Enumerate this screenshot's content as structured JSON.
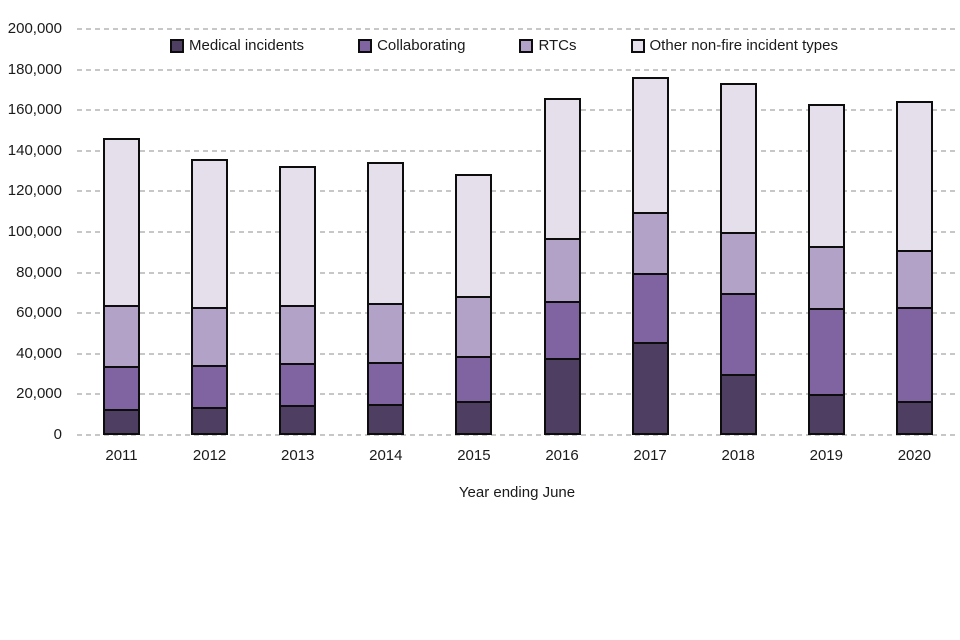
{
  "page": {
    "background": "#ffffff",
    "text_color": "#1a1a1a",
    "gridline_color": "#c7c7c7",
    "bar_border_color": "#0d0d0d"
  },
  "chart_data": {
    "type": "bar",
    "stacked": true,
    "title": "",
    "xlabel": "Year ending June",
    "ylabel": "",
    "ylim": [
      0,
      200000
    ],
    "y_tick_interval": 20000,
    "y_tick_labels": [
      "0",
      "20,000",
      "40,000",
      "60,000",
      "80,000",
      "100,000",
      "120,000",
      "140,000",
      "160,000",
      "180,000",
      "200,000"
    ],
    "grid": "horizontal-dashed",
    "legend_position": "top",
    "categories": [
      "2011",
      "2012",
      "2013",
      "2014",
      "2015",
      "2016",
      "2017",
      "2018",
      "2019",
      "2020"
    ],
    "series": [
      {
        "name": "Medical incidents",
        "color": "#4d3e62",
        "values": [
          12000,
          13000,
          14000,
          14500,
          16000,
          37000,
          45000,
          29000,
          19000,
          16000
        ]
      },
      {
        "name": "Collaborating",
        "color": "#8064a2",
        "values": [
          21000,
          20500,
          20500,
          20500,
          22000,
          28000,
          34000,
          40000,
          42500,
          46000
        ]
      },
      {
        "name": "RTCs",
        "color": "#b2a2c7",
        "values": [
          30000,
          28500,
          28500,
          29000,
          29500,
          31000,
          30000,
          30000,
          30500,
          28000
        ]
      },
      {
        "name": "Other non-fire incident types",
        "color": "#e5dfec",
        "values": [
          81500,
          72000,
          67500,
          68500,
          59000,
          68000,
          65500,
          72500,
          69000,
          72500
        ]
      }
    ],
    "stack_totals": [
      144500,
      134000,
      130500,
      132500,
      126500,
      164000,
      174500,
      171500,
      161000,
      162500
    ]
  }
}
